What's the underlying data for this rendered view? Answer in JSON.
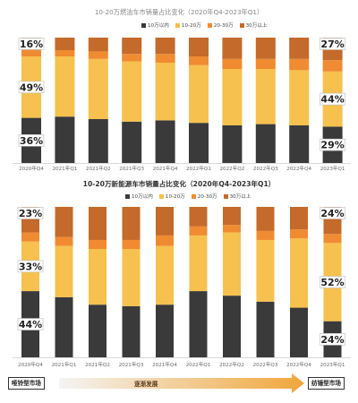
{
  "colors": {
    "under10": "#3a3a3a",
    "10to20": "#f6c14e",
    "20to30": "#f08b32",
    "over30": "#c46a2a",
    "label_box_fill": "#ffffff",
    "arrow": "#f0a63a"
  },
  "chart_data": [
    {
      "type": "bar",
      "stacked": true,
      "title": "10-20万燃油车市销量占比变化（2020年Q4-2023年Q1）",
      "categories": [
        "2020年Q4",
        "2021年Q1",
        "2021年Q2",
        "2021年Q3",
        "2021年Q4",
        "2022年Q1",
        "2022年Q2",
        "2022年Q3",
        "2022年Q4",
        "2023年Q1"
      ],
      "series": [
        {
          "name": "10万以内",
          "color_key": "under10",
          "values": [
            36,
            37,
            35,
            33,
            34,
            32,
            30,
            31,
            30,
            29
          ]
        },
        {
          "name": "10-20万",
          "color_key": "10to20",
          "values": [
            49,
            48,
            48,
            48,
            46,
            46,
            45,
            44,
            44,
            44
          ]
        },
        {
          "name": "20-30万",
          "color_key": "20to30",
          "values": [
            5,
            5,
            6,
            6,
            7,
            7,
            8,
            8,
            9,
            9
          ]
        },
        {
          "name": "30万以上",
          "color_key": "over30",
          "values": [
            10,
            10,
            11,
            13,
            13,
            15,
            17,
            17,
            17,
            18
          ]
        }
      ],
      "ylim": [
        0,
        100
      ],
      "legend_position": "top-center",
      "annotations": [
        {
          "category": "2020年Q4",
          "series": "30万以上",
          "label": "16%",
          "value": 16
        },
        {
          "category": "2020年Q4",
          "series": "10-20万",
          "label": "49%",
          "value": 49
        },
        {
          "category": "2020年Q4",
          "series": "10万以内",
          "label": "36%",
          "value": 36
        },
        {
          "category": "2023年Q1",
          "series": "30万以上",
          "label": "27%",
          "value": 27
        },
        {
          "category": "2023年Q1",
          "series": "10-20万",
          "label": "44%",
          "value": 44
        },
        {
          "category": "2023年Q1",
          "series": "10万以内",
          "label": "29%",
          "value": 29
        }
      ]
    },
    {
      "type": "bar",
      "stacked": true,
      "title": "10-20万新能源车市销量占比变化（2020年Q4-2023年Q1）",
      "categories": [
        "2020年Q4",
        "2021年Q1",
        "2021年Q2",
        "2021年Q3",
        "2021年Q4",
        "2022年Q1",
        "2022年Q2",
        "2022年Q3",
        "2022年Q4",
        "2023年Q1"
      ],
      "series": [
        {
          "name": "10万以内",
          "color_key": "under10",
          "values": [
            44,
            40,
            35,
            34,
            35,
            44,
            41,
            37,
            33,
            24
          ]
        },
        {
          "name": "10-20万",
          "color_key": "10to20",
          "values": [
            33,
            34,
            37,
            38,
            39,
            37,
            42,
            41,
            46,
            52
          ]
        },
        {
          "name": "20-30万",
          "color_key": "20to30",
          "values": [
            6,
            6,
            6,
            6,
            7,
            6,
            5,
            6,
            6,
            6
          ]
        },
        {
          "name": "30万以上",
          "color_key": "over30",
          "values": [
            17,
            20,
            22,
            22,
            19,
            13,
            12,
            16,
            15,
            18
          ]
        }
      ],
      "ylim": [
        0,
        100
      ],
      "legend_position": "top-center",
      "annotations": [
        {
          "category": "2020年Q4",
          "series": "30万以上",
          "label": "23%",
          "value": 23
        },
        {
          "category": "2020年Q4",
          "series": "10-20万",
          "label": "33%",
          "value": 33
        },
        {
          "category": "2020年Q4",
          "series": "10万以内",
          "label": "44%",
          "value": 44
        },
        {
          "category": "2023年Q1",
          "series": "30万以上",
          "label": "24%",
          "value": 24
        },
        {
          "category": "2023年Q1",
          "series": "10-20万",
          "label": "52%",
          "value": 52
        },
        {
          "category": "2023年Q1",
          "series": "10万以内",
          "label": "24%",
          "value": 24
        }
      ]
    }
  ],
  "footer": {
    "left_label": "哑铃型市场",
    "middle_label": "逐渐发展",
    "right_label": "纺锤型市场"
  }
}
